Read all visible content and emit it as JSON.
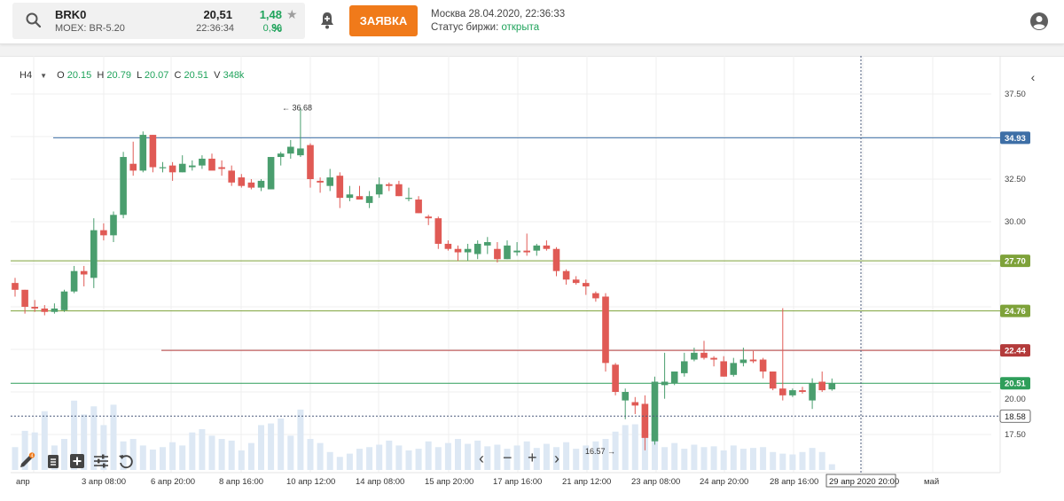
{
  "header": {
    "symbol": "BRK0",
    "exchange": "MOEX: BR-5.20",
    "price": "20,51",
    "time": "22:36:34",
    "change_pct": "1,48 %",
    "change_abs": "0,30",
    "order_button": "ЗАЯВКА",
    "session_info": "Москва 28.04.2020, 22:36:33",
    "status_label": "Статус биржи:",
    "status_value": "открыта"
  },
  "legend": {
    "interval": "H4",
    "o_label": "O",
    "o_value": "20.15",
    "h_label": "H",
    "h_value": "20.79",
    "l_label": "L",
    "l_value": "20.07",
    "c_label": "C",
    "c_value": "20.51",
    "v_label": "V",
    "v_value": "348k"
  },
  "chart_data": {
    "type": "candlestick",
    "y_ticks": [
      "37.50",
      "32.50",
      "30.00",
      "20.00",
      "17.50"
    ],
    "ylim": [
      15.0,
      39.5
    ],
    "x_ticks": [
      "апр",
      "3 апр 08:00",
      "6 апр 20:00",
      "8 апр 16:00",
      "10 апр 12:00",
      "14 апр 08:00",
      "15 апр 20:00",
      "17 апр 16:00",
      "21 апр 12:00",
      "23 апр 08:00",
      "24 апр 20:00",
      "28 апр 16:00",
      "май"
    ],
    "crosshair_time": "29 апр 2020 20:00",
    "crosshair_price": "18.58",
    "max_label": "36.68",
    "min_label": "16.57",
    "levels": [
      {
        "value": "34.93",
        "color": "#3e6fa6"
      },
      {
        "value": "27.70",
        "color": "#7ea23a"
      },
      {
        "value": "24.76",
        "color": "#7ea23a"
      },
      {
        "value": "22.44",
        "color": "#b33b3b"
      },
      {
        "value": "20.51",
        "color": "#2e9e5a"
      }
    ],
    "candles": [
      [
        26.4,
        26.7,
        25.6,
        26.0
      ],
      [
        26.0,
        26.0,
        24.6,
        25.0
      ],
      [
        25.0,
        25.4,
        24.7,
        24.9
      ],
      [
        24.9,
        25.1,
        24.5,
        24.7
      ],
      [
        24.7,
        25.2,
        24.6,
        24.9
      ],
      [
        24.8,
        26.0,
        24.7,
        25.9
      ],
      [
        25.9,
        27.4,
        25.8,
        27.1
      ],
      [
        27.1,
        27.4,
        26.2,
        26.9
      ],
      [
        26.7,
        30.2,
        26.1,
        29.5
      ],
      [
        29.5,
        29.9,
        28.9,
        29.2
      ],
      [
        29.2,
        30.6,
        28.8,
        30.4
      ],
      [
        30.4,
        34.1,
        30.2,
        33.8
      ],
      [
        33.4,
        34.7,
        32.7,
        33.0
      ],
      [
        33.0,
        35.3,
        32.9,
        35.1
      ],
      [
        35.1,
        35.1,
        32.9,
        33.2
      ],
      [
        33.2,
        33.5,
        32.9,
        33.2
      ],
      [
        33.3,
        33.5,
        32.4,
        32.9
      ],
      [
        32.9,
        33.9,
        32.9,
        33.4
      ],
      [
        33.2,
        33.6,
        33.0,
        33.3
      ],
      [
        33.3,
        33.9,
        33.1,
        33.7
      ],
      [
        33.7,
        34.0,
        33.1,
        33.0
      ],
      [
        33.2,
        33.6,
        32.7,
        33.1
      ],
      [
        33.0,
        33.3,
        32.1,
        32.3
      ],
      [
        32.6,
        32.8,
        32.0,
        32.1
      ],
      [
        32.3,
        32.5,
        31.9,
        32.0
      ],
      [
        32.0,
        32.5,
        31.8,
        32.4
      ],
      [
        31.9,
        33.8,
        31.9,
        33.8
      ],
      [
        33.8,
        34.1,
        33.3,
        34.0
      ],
      [
        34.0,
        34.8,
        33.7,
        34.4
      ],
      [
        33.9,
        36.68,
        33.8,
        34.3
      ],
      [
        34.5,
        34.6,
        32.0,
        32.5
      ],
      [
        32.4,
        32.6,
        31.7,
        32.3
      ],
      [
        32.1,
        33.1,
        31.8,
        32.6
      ],
      [
        32.7,
        32.9,
        30.8,
        31.4
      ],
      [
        31.4,
        32.1,
        31.2,
        31.6
      ],
      [
        31.5,
        32.1,
        31.3,
        31.3
      ],
      [
        31.1,
        31.8,
        30.8,
        31.5
      ],
      [
        31.6,
        32.6,
        31.4,
        32.2
      ],
      [
        32.2,
        32.3,
        31.8,
        32.1
      ],
      [
        32.2,
        32.4,
        31.5,
        31.5
      ],
      [
        31.4,
        32.0,
        31.2,
        31.4
      ],
      [
        31.3,
        31.5,
        30.5,
        30.5
      ],
      [
        30.3,
        30.4,
        29.8,
        30.2
      ],
      [
        30.2,
        30.3,
        28.4,
        28.7
      ],
      [
        28.7,
        28.9,
        28.3,
        28.4
      ],
      [
        28.4,
        28.6,
        27.7,
        28.2
      ],
      [
        28.2,
        28.7,
        27.7,
        28.4
      ],
      [
        28.1,
        28.9,
        27.8,
        28.7
      ],
      [
        28.6,
        29.1,
        28.1,
        28.8
      ],
      [
        28.4,
        28.8,
        27.6,
        27.8
      ],
      [
        27.8,
        28.9,
        27.8,
        28.6
      ],
      [
        28.2,
        28.8,
        28.0,
        28.3
      ],
      [
        28.3,
        29.3,
        28.0,
        28.2
      ],
      [
        28.3,
        28.7,
        28.0,
        28.6
      ],
      [
        28.6,
        28.9,
        28.3,
        28.4
      ],
      [
        28.4,
        28.5,
        26.8,
        27.1
      ],
      [
        27.1,
        27.2,
        26.3,
        26.6
      ],
      [
        26.6,
        26.8,
        26.3,
        26.4
      ],
      [
        26.4,
        26.6,
        25.7,
        26.2
      ],
      [
        25.8,
        25.9,
        25.3,
        25.5
      ],
      [
        25.6,
        25.8,
        21.2,
        21.7
      ],
      [
        21.6,
        21.7,
        19.8,
        20.0
      ],
      [
        19.5,
        20.2,
        18.4,
        20.0
      ],
      [
        19.4,
        19.7,
        18.7,
        19.2
      ],
      [
        19.3,
        19.8,
        16.57,
        17.3
      ],
      [
        17.1,
        20.9,
        16.9,
        20.6
      ],
      [
        20.4,
        22.3,
        19.6,
        20.6
      ],
      [
        20.5,
        21.2,
        20.4,
        21.2
      ],
      [
        21.1,
        22.3,
        20.9,
        21.8
      ],
      [
        21.9,
        22.6,
        21.8,
        22.3
      ],
      [
        22.3,
        23.0,
        21.9,
        22.0
      ],
      [
        22.0,
        22.1,
        21.5,
        21.9
      ],
      [
        21.8,
        22.1,
        20.9,
        20.9
      ],
      [
        21.0,
        22.0,
        20.9,
        21.7
      ],
      [
        21.7,
        22.6,
        21.5,
        21.9
      ],
      [
        21.9,
        22.4,
        21.7,
        21.8
      ],
      [
        21.9,
        22.0,
        20.8,
        21.2
      ],
      [
        21.2,
        21.2,
        20.1,
        20.2
      ],
      [
        20.2,
        24.92,
        19.5,
        19.8
      ],
      [
        19.8,
        20.2,
        19.7,
        20.1
      ],
      [
        20.1,
        20.3,
        19.9,
        20.0
      ],
      [
        19.5,
        20.8,
        19.0,
        20.5
      ],
      [
        20.6,
        21.2,
        20.0,
        20.1
      ],
      [
        20.15,
        20.79,
        20.07,
        20.51
      ]
    ],
    "volumes": [
      0.28,
      0.48,
      0.46,
      0.72,
      0.3,
      0.38,
      0.85,
      0.68,
      0.78,
      0.55,
      0.8,
      0.35,
      0.38,
      0.3,
      0.25,
      0.28,
      0.34,
      0.3,
      0.46,
      0.5,
      0.42,
      0.38,
      0.36,
      0.24,
      0.33,
      0.55,
      0.57,
      0.63,
      0.42,
      0.74,
      0.38,
      0.33,
      0.22,
      0.16,
      0.2,
      0.26,
      0.28,
      0.31,
      0.36,
      0.3,
      0.24,
      0.26,
      0.35,
      0.28,
      0.33,
      0.38,
      0.32,
      0.36,
      0.29,
      0.31,
      0.26,
      0.3,
      0.35,
      0.27,
      0.32,
      0.28,
      0.34,
      0.26,
      0.3,
      0.35,
      0.38,
      0.47,
      0.55,
      0.56,
      0.6,
      0.47,
      0.28,
      0.33,
      0.26,
      0.31,
      0.28,
      0.29,
      0.24,
      0.3,
      0.26,
      0.27,
      0.28,
      0.22,
      0.2,
      0.19,
      0.22,
      0.27,
      0.22,
      0.07
    ]
  },
  "toolbar_icons": [
    "pencil-icon",
    "list-icon",
    "add-indicator-icon",
    "settings-sliders-icon",
    "undo-icon"
  ],
  "zoom_controls": {
    "prev": "‹",
    "minus": "−",
    "plus": "+",
    "next": "›"
  },
  "draw_badge": "4"
}
